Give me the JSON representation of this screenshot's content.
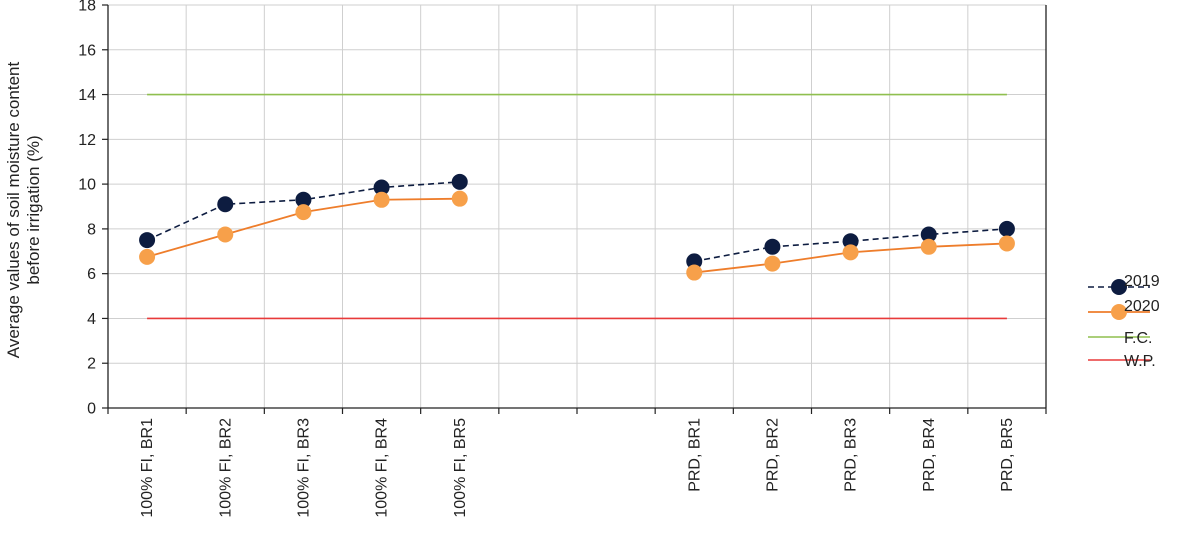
{
  "chart_data": {
    "type": "line",
    "title": "",
    "ylabel_lines": [
      "Average values of soil moisture content",
      "before irrigation (%)"
    ],
    "xlabel": "",
    "ylim": [
      0,
      18
    ],
    "yticks": [
      0,
      2,
      4,
      6,
      8,
      10,
      12,
      14,
      16,
      18
    ],
    "grid": true,
    "categories": [
      "100% FI, BR1",
      "100% FI, BR2",
      "100% FI, BR3",
      "100% FI, BR4",
      "100% FI, BR5",
      "",
      "",
      "PRD, BR1",
      "PRD, BR2",
      "PRD, BR3",
      "PRD, BR4",
      "PRD, BR5"
    ],
    "series": [
      {
        "name": "2019",
        "values": [
          7.5,
          9.1,
          9.3,
          9.85,
          10.1,
          null,
          null,
          6.55,
          7.2,
          7.45,
          7.75,
          8.0
        ],
        "color": "#0d1c40",
        "dash": true,
        "marker": true
      },
      {
        "name": "2020",
        "values": [
          6.75,
          7.75,
          8.75,
          9.3,
          9.35,
          null,
          null,
          6.05,
          6.45,
          6.95,
          7.2,
          7.35
        ],
        "color": "#ee7d2b",
        "marker_color": "#f7a04a",
        "dash": false,
        "marker": true
      }
    ],
    "reference_lines": [
      {
        "name": "F.C.",
        "value": 14,
        "color": "#8fbf4f"
      },
      {
        "name": "W.P.",
        "value": 4,
        "color": "#e83a3a"
      }
    ],
    "legend_position": "right"
  }
}
